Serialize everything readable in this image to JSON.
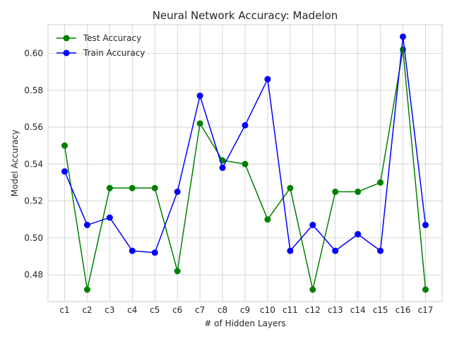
{
  "chart_data": {
    "type": "line",
    "title": "Neural Network Accuracy: Madelon",
    "xlabel": "# of Hidden Layers",
    "ylabel": "Model Accuracy",
    "categories": [
      "c1",
      "c2",
      "c3",
      "c4",
      "c5",
      "c6",
      "c7",
      "c8",
      "c9",
      "c10",
      "c11",
      "c12",
      "c13",
      "c14",
      "c15",
      "c16",
      "c17"
    ],
    "series": [
      {
        "name": "Test Accuracy",
        "color": "#008000",
        "marker": "circle",
        "values": [
          0.55,
          0.472,
          0.527,
          0.527,
          0.527,
          0.482,
          0.562,
          0.542,
          0.54,
          0.51,
          0.527,
          0.472,
          0.525,
          0.525,
          0.53,
          0.602,
          0.472
        ]
      },
      {
        "name": "Train Accuracy",
        "color": "#0000ff",
        "marker": "circle",
        "values": [
          0.536,
          0.507,
          0.511,
          0.493,
          0.492,
          0.525,
          0.577,
          0.538,
          0.561,
          0.586,
          0.493,
          0.507,
          0.493,
          0.502,
          0.493,
          0.609,
          0.507
        ]
      }
    ],
    "ylim": [
      0.4655,
      0.6155
    ],
    "yticks": [
      0.48,
      0.5,
      0.52,
      0.54,
      0.56,
      0.58,
      0.6
    ],
    "ytick_labels": [
      "0.48",
      "0.50",
      "0.52",
      "0.54",
      "0.56",
      "0.58",
      "0.60"
    ],
    "grid": true,
    "legend_position": "top-left"
  }
}
